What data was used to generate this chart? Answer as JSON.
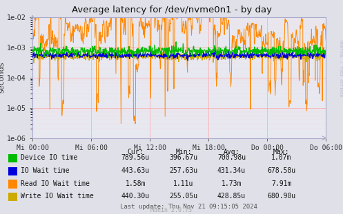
{
  "title": "Average latency for /dev/nvme0n1 - by day",
  "ylabel": "seconds",
  "background_color": "#dfe0e8",
  "plot_background": "#e8e8f0",
  "grid_color_major": "#ff9999",
  "grid_color_minor": "#ffcccc",
  "ylim": [
    1e-06,
    0.01
  ],
  "ytick_vals": [
    1e-06,
    1e-05,
    0.0001,
    0.001,
    0.01
  ],
  "ytick_labels": [
    "1e-06",
    "1e-05",
    "1e-04",
    "1e-03",
    "1e-02"
  ],
  "xtick_labels": [
    "Mi 00:00",
    "Mi 06:00",
    "Mi 12:00",
    "Mi 18:00",
    "Do 00:00",
    "Do 06:00"
  ],
  "legend_entries": [
    {
      "label": "Device IO time",
      "color": "#00bb00"
    },
    {
      "label": "IO Wait time",
      "color": "#0000dd"
    },
    {
      "label": "Read IO Wait time",
      "color": "#ff8800"
    },
    {
      "label": "Write IO Wait time",
      "color": "#ccaa00"
    }
  ],
  "stats": [
    {
      "cur": "789.56u",
      "min": "396.67u",
      "avg": "700.98u",
      "max": "1.07m"
    },
    {
      "cur": "443.63u",
      "min": "257.63u",
      "avg": "431.34u",
      "max": "678.58u"
    },
    {
      "cur": "1.58m",
      "min": "1.11u",
      "avg": "1.73m",
      "max": "7.91m"
    },
    {
      "cur": "440.30u",
      "min": "255.05u",
      "avg": "428.85u",
      "max": "680.90u"
    }
  ],
  "last_update": "Last update: Thu Nov 21 09:15:05 2024",
  "munin_version": "Munin 2.0.73",
  "rrdtool_label": "RRDTOOL / TOBI OETIKER",
  "spine_color": "#aaaacc",
  "col_headers": [
    "Cur:",
    "Min:",
    "Avg:",
    "Max:"
  ]
}
